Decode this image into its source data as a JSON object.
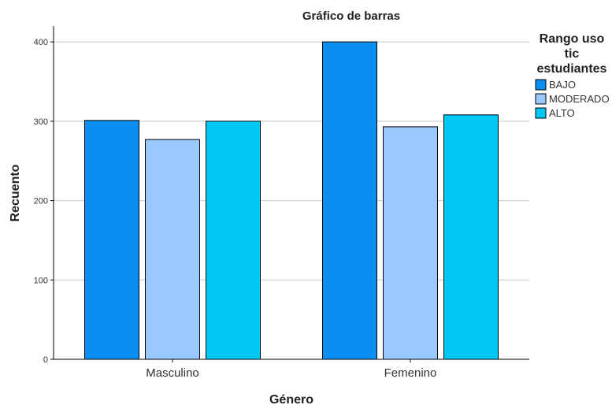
{
  "chart_data": {
    "type": "bar",
    "title": "Gráfico de barras",
    "xlabel": "Género",
    "ylabel": "Recuento",
    "categories": [
      "Masculino",
      "Femenino"
    ],
    "ylim": [
      0,
      420
    ],
    "yticks": [
      0,
      100,
      200,
      300,
      400
    ],
    "grid": true,
    "legend": {
      "title_lines": [
        "Rango uso",
        "tic",
        "estudiantes"
      ],
      "position": "top-right"
    },
    "series": [
      {
        "name": "BAJO",
        "values": [
          301,
          400
        ],
        "color": "#0a8ff0"
      },
      {
        "name": "MODERADO",
        "values": [
          277,
          293
        ],
        "color": "#99c9ff"
      },
      {
        "name": "ALTO",
        "values": [
          300,
          308
        ],
        "color": "#00c8f5"
      }
    ]
  }
}
